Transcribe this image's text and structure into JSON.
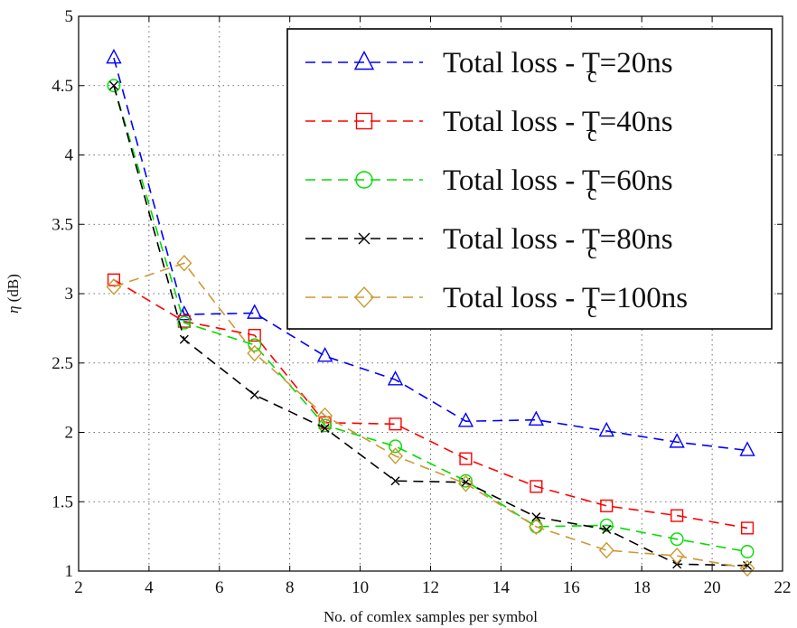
{
  "chart_data": {
    "type": "line",
    "title": "",
    "xlabel": "No. of comlex samples per symbol",
    "ylabel_symbol": "η",
    "ylabel_unit": " (dB)",
    "xlim": [
      2,
      22
    ],
    "ylim": [
      1,
      5
    ],
    "xticks": [
      2,
      4,
      6,
      8,
      10,
      12,
      14,
      16,
      18,
      20,
      22
    ],
    "yticks": [
      1,
      1.5,
      2,
      2.5,
      3,
      3.5,
      4,
      4.5,
      5
    ],
    "grid": true,
    "legend_position": "top-right",
    "series": [
      {
        "name": "Total loss - Tc=20ns",
        "label_main": "Total loss - T",
        "label_sub": "c",
        "label_tail": "=20ns",
        "color": "#0000ff",
        "marker": "triangle",
        "x": [
          3,
          5,
          7,
          9,
          11,
          13,
          15,
          17,
          19,
          21
        ],
        "y": [
          4.7,
          2.85,
          2.86,
          2.55,
          2.38,
          2.08,
          2.09,
          2.01,
          1.93,
          1.87
        ]
      },
      {
        "name": "Total loss - Tc=40ns",
        "label_main": "Total loss - T",
        "label_sub": "c",
        "label_tail": "=40ns",
        "color": "#ff0000",
        "marker": "square",
        "x": [
          3,
          5,
          7,
          9,
          11,
          13,
          15,
          17,
          19,
          21
        ],
        "y": [
          3.1,
          2.8,
          2.7,
          2.07,
          2.06,
          1.81,
          1.61,
          1.47,
          1.4,
          1.31
        ]
      },
      {
        "name": "Total loss - Tc=60ns",
        "label_main": "Total loss - T",
        "label_sub": "c",
        "label_tail": "=60ns",
        "color": "#00dd00",
        "marker": "circle",
        "x": [
          3,
          5,
          7,
          9,
          11,
          13,
          15,
          17,
          19,
          21
        ],
        "y": [
          4.5,
          2.79,
          2.63,
          2.05,
          1.9,
          1.65,
          1.32,
          1.33,
          1.23,
          1.14
        ]
      },
      {
        "name": "Total loss - Tc=80ns",
        "label_main": "Total loss - T",
        "label_sub": "c",
        "label_tail": "=80ns",
        "color": "#000000",
        "marker": "x",
        "x": [
          3,
          5,
          7,
          9,
          11,
          13,
          15,
          17,
          19,
          21
        ],
        "y": [
          4.5,
          2.67,
          2.27,
          2.03,
          1.65,
          1.64,
          1.39,
          1.3,
          1.05,
          1.04
        ]
      },
      {
        "name": "Total loss - Tc=100ns",
        "label_main": "Total loss - T",
        "label_sub": "c",
        "label_tail": "=100ns",
        "color": "#cc9933",
        "marker": "diamond",
        "x": [
          3,
          5,
          7,
          9,
          11,
          13,
          15,
          17,
          19,
          21
        ],
        "y": [
          3.05,
          3.22,
          2.57,
          2.12,
          1.83,
          1.63,
          1.32,
          1.15,
          1.11,
          1.02
        ]
      }
    ]
  }
}
